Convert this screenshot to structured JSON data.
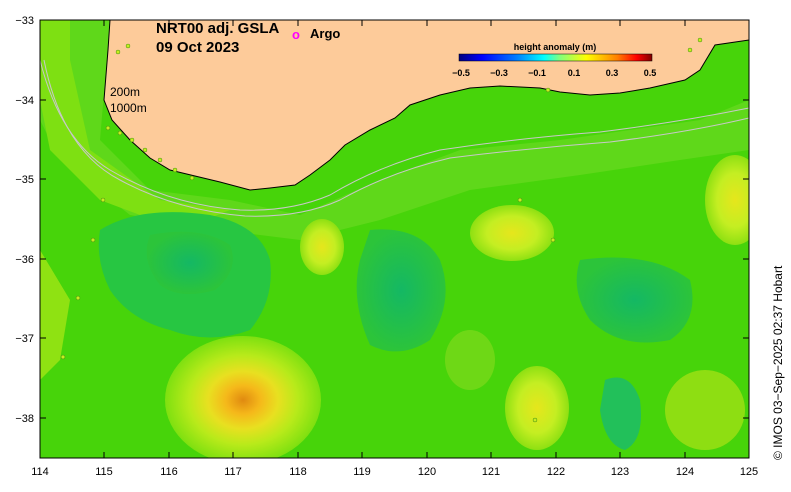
{
  "title": {
    "line1": "NRT00 adj. GSLA",
    "line2": "09 Oct 2023"
  },
  "legend": {
    "marker_symbol": "o",
    "marker_color": "#ff00ff",
    "label": "Argo"
  },
  "colorbar": {
    "title": "height anomaly (m)",
    "ticks": [
      "−0.5",
      "−0.3",
      "−0.1",
      "0.1",
      "0.3",
      "0.5"
    ],
    "colors": [
      "#00007f",
      "#0000ff",
      "#007fff",
      "#00ffff",
      "#7fff7f",
      "#ffff00",
      "#ff7f00",
      "#ff0000",
      "#7f0000"
    ]
  },
  "isobaths": {
    "shallow": "200m",
    "deep": "1000m"
  },
  "axes": {
    "x_ticks": [
      "114",
      "115",
      "116",
      "117",
      "118",
      "119",
      "120",
      "121",
      "122",
      "123",
      "124",
      "125"
    ],
    "y_ticks": [
      "−33",
      "−34",
      "−35",
      "−36",
      "−37",
      "−38"
    ]
  },
  "credit": "© IMOS 03−Sep−2025 02:37 Hobart",
  "colors": {
    "land": "#fdcb9a",
    "ocean_base": "#47d40a"
  }
}
